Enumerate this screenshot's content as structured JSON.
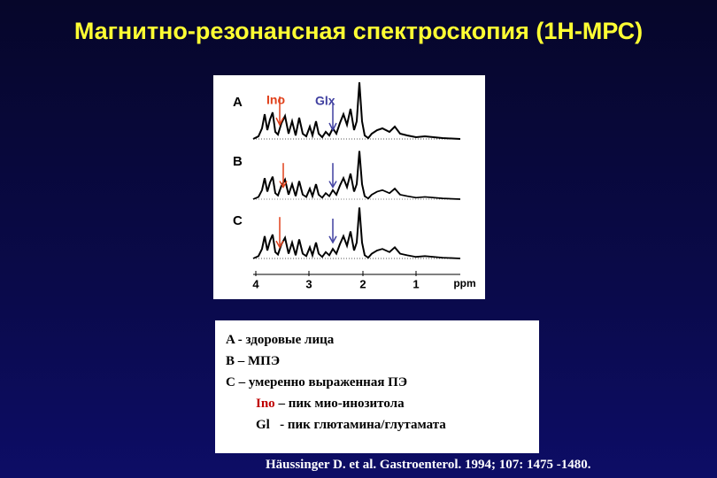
{
  "header": {
    "title": "Магнитно-резонансная спектроскопия (1Н-МРС)"
  },
  "figure": {
    "rows": [
      {
        "label": "A"
      },
      {
        "label": "B"
      },
      {
        "label": "C"
      }
    ],
    "annotations": {
      "ino": "Ino",
      "glx": "Glx"
    },
    "axis": {
      "ticks": [
        "4",
        "3",
        "2",
        "1"
      ],
      "unit": "ppm"
    }
  },
  "legend": {
    "lines": [
      "A - здоровые лица",
      "B – МПЭ",
      "C – умеренно выраженная ПЭ"
    ],
    "abbreviations": [
      {
        "term": "Ino",
        "text": "– пик мио-инозитола"
      },
      {
        "term": "Gl",
        "text": "- пик глютамина/глутамата"
      }
    ]
  },
  "citation": "Häussinger D. et al. Gastroenterol. 1994; 107: 1475 -1480."
}
